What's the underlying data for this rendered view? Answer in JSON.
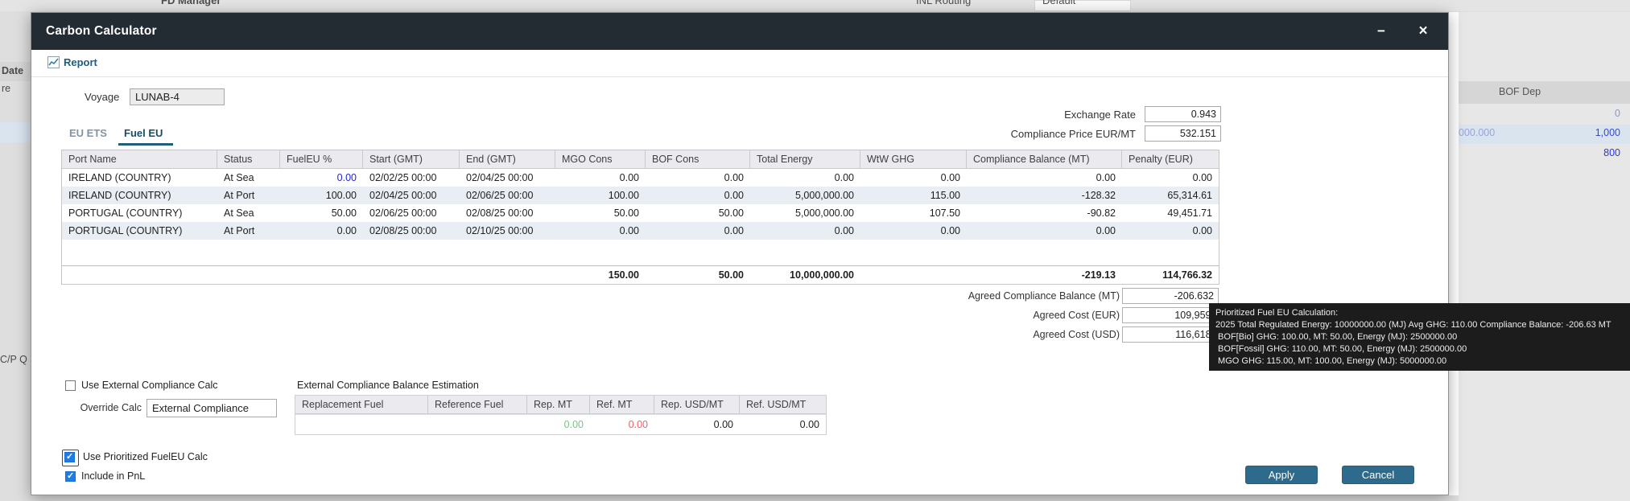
{
  "background": {
    "top_items": {
      "manager": "FD Manager",
      "routing": "INL Routing",
      "routing_value": "Default"
    },
    "left_labels": {
      "date": "Date",
      "re": "re",
      "cpq": "C/P Q"
    },
    "right_panel": {
      "header": "BOF Dep",
      "value_top": "0",
      "value_left": "000.000",
      "value_mid": "1,000",
      "value_bottom": "800"
    }
  },
  "dialog": {
    "title": "Carbon Calculator",
    "minimize_glyph": "−",
    "close_glyph": "×",
    "report_label": "Report",
    "voyage": {
      "label": "Voyage",
      "value": "LUNAB-4"
    },
    "exchange_rate": {
      "label": "Exchange Rate",
      "value": "0.943"
    },
    "compliance_price": {
      "label": "Compliance Price EUR/MT",
      "value": "532.151"
    },
    "tabs": [
      {
        "label": "EU ETS",
        "active": false
      },
      {
        "label": "Fuel EU",
        "active": true
      }
    ],
    "table": {
      "columns": [
        "Port Name",
        "Status",
        "FuelEU %",
        "Start (GMT)",
        "End (GMT)",
        "MGO Cons",
        "BOF Cons",
        "Total Energy",
        "WtW GHG",
        "Compliance Balance (MT)",
        "Penalty (EUR)"
      ],
      "rows": [
        [
          "IRELAND (COUNTRY)",
          "At Sea",
          "0.00",
          "02/02/25 00:00",
          "02/04/25 00:00",
          "0.00",
          "0.00",
          "0.00",
          "0.00",
          "0.00",
          "0.00"
        ],
        [
          "IRELAND (COUNTRY)",
          "At Port",
          "100.00",
          "02/04/25 00:00",
          "02/06/25 00:00",
          "100.00",
          "0.00",
          "5,000,000.00",
          "115.00",
          "-128.32",
          "65,314.61"
        ],
        [
          "PORTUGAL (COUNTRY)",
          "At Sea",
          "50.00",
          "02/06/25 00:00",
          "02/08/25 00:00",
          "50.00",
          "50.00",
          "5,000,000.00",
          "107.50",
          "-90.82",
          "49,451.71"
        ],
        [
          "PORTUGAL (COUNTRY)",
          "At Port",
          "0.00",
          "02/08/25 00:00",
          "02/10/25 00:00",
          "0.00",
          "0.00",
          "0.00",
          "0.00",
          "0.00",
          "0.00"
        ]
      ],
      "totals": [
        "",
        "",
        "",
        "",
        "",
        "150.00",
        "50.00",
        "10,000,000.00",
        "",
        "-219.13",
        "114,766.32"
      ],
      "highlight": [
        {
          "row": 0,
          "col": 2,
          "class": "c-blue"
        }
      ]
    },
    "agreed_rows": [
      {
        "label": "Agreed Compliance Balance (MT)",
        "value": "-206.632"
      },
      {
        "label": "Agreed Cost (EUR)",
        "value": "109,959."
      },
      {
        "label": "Agreed Cost (USD)",
        "value": "116,618."
      }
    ],
    "external": {
      "use_checkbox_label": "Use External Compliance Calc",
      "use_checkbox_checked": false,
      "override_label": "Override Calc",
      "override_value": "External Compliance",
      "estimation_title": "External Compliance Balance Estimation",
      "columns": [
        "Replacement Fuel",
        "Reference Fuel",
        "Rep. MT",
        "Ref. MT",
        "Rep. USD/MT",
        "Ref. USD/MT"
      ],
      "row": [
        "",
        "",
        "0.00",
        "0.00",
        "0.00",
        "0.00"
      ],
      "highlight": [
        {
          "row": 0,
          "col": 2,
          "class": "c-green"
        },
        {
          "row": 0,
          "col": 3,
          "class": "c-red"
        }
      ]
    },
    "bottom_checkboxes": [
      {
        "label": "Use Prioritized FuelEU Calc",
        "checked": true
      },
      {
        "label": "Include in PnL",
        "checked": true
      }
    ],
    "buttons": {
      "apply": "Apply",
      "cancel": "Cancel"
    }
  },
  "tooltip": {
    "lines": [
      "Prioritized Fuel EU Calculation:",
      "2025 Total Regulated Energy: 10000000.00 (MJ) Avg GHG: 110.00 Compliance Balance: -206.63 MT",
      " BOF[Bio] GHG: 100.00, MT: 50.00, Energy (MJ): 2500000.00",
      " BOF[Fossil] GHG: 110.00, MT: 50.00, Energy (MJ): 2500000.00",
      " MGO GHG: 115.00, MT: 100.00, Energy (MJ): 5000000.00"
    ]
  },
  "colors": {
    "titlebar": "#232b33",
    "accent_teal": "#1f5e79",
    "button": "#2d6a8c",
    "checkbox_checked": "#1e7be8",
    "edited_cell_blue": "#2222d8",
    "estimation_green": "#7cc47f",
    "estimation_red": "#ef6161",
    "tooltip_bg": "#1c1c1c"
  }
}
